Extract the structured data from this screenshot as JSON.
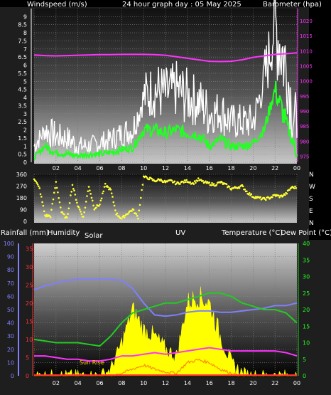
{
  "title": "24 hour graph day : 05 May 2025",
  "colors": {
    "wind_avg": "#22ff22",
    "wind_gust": "#ffffff",
    "barometer": "#ff33ff",
    "direction": "#ffff33",
    "temperature": "#22cc22",
    "dewpoint": "#ff33ff",
    "humidity": "#7f7fff",
    "solar": "#ffff00",
    "rain": "#ff3333",
    "uv": "#ff8800"
  },
  "x_ticks": [
    "02",
    "04",
    "06",
    "08",
    "10",
    "12",
    "14",
    "16",
    "18",
    "20",
    "22",
    "00"
  ],
  "chart_data": [
    {
      "type": "line",
      "title": "24 hour graph day : 05 May 2025",
      "ylabel": "Windspeed (m/s)",
      "y2label": "Barometer (hpa)",
      "ylim": [
        0,
        9.5
      ],
      "y2lim": [
        973,
        1024
      ],
      "yticks": [
        "0",
        "0.5",
        "1",
        "1.5",
        "2",
        "2.5",
        "3",
        "3.5",
        "4",
        "4.5",
        "5",
        "5.5",
        "6",
        "6.5",
        "7",
        "7.5",
        "8",
        "8.5",
        "9"
      ],
      "y2ticks": [
        "975",
        "980",
        "985",
        "990",
        "995",
        "1000",
        "1005",
        "1010",
        "1015",
        "1020"
      ],
      "x": [
        0,
        1,
        2,
        3,
        4,
        5,
        6,
        7,
        8,
        9,
        10,
        11,
        12,
        13,
        14,
        15,
        16,
        17,
        18,
        19,
        20,
        21,
        22,
        23,
        24
      ],
      "series": [
        {
          "name": "gust",
          "axis": "y",
          "values": [
            1.0,
            2.0,
            1.6,
            1.5,
            1.0,
            1.0,
            1.2,
            1.4,
            1.8,
            2.0,
            4.0,
            4.5,
            4.2,
            4.5,
            4.0,
            3.8,
            3.0,
            3.2,
            2.5,
            2.5,
            2.5,
            5.0,
            8.5,
            6.0,
            1.5
          ]
        },
        {
          "name": "avg",
          "axis": "y",
          "values": [
            0.3,
            1.0,
            0.6,
            0.5,
            0.4,
            0.5,
            0.5,
            0.6,
            0.8,
            0.9,
            2.0,
            2.0,
            1.8,
            2.0,
            1.8,
            1.7,
            1.0,
            1.4,
            1.0,
            1.0,
            1.2,
            2.0,
            4.5,
            2.5,
            0.5
          ]
        },
        {
          "name": "barometer",
          "axis": "y2",
          "values": [
            1008.6,
            1008.4,
            1008.3,
            1008.4,
            1008.5,
            1008.6,
            1008.7,
            1008.7,
            1008.8,
            1008.8,
            1008.8,
            1008.7,
            1008.5,
            1008.0,
            1007.5,
            1007.0,
            1006.5,
            1006.4,
            1006.5,
            1007.0,
            1007.8,
            1008.3,
            1008.8,
            1009.0,
            1009.3
          ]
        }
      ]
    },
    {
      "type": "scatter",
      "ylim": [
        0,
        360
      ],
      "yticks": [
        "0",
        "90",
        "180",
        "270",
        "360"
      ],
      "dir_labels": [
        "N",
        "W",
        "S",
        "E",
        "N"
      ],
      "x": [
        0,
        0.5,
        1,
        1.5,
        2,
        2.5,
        3,
        3.5,
        4,
        4.5,
        5,
        5.5,
        6,
        6.5,
        7,
        7.5,
        8,
        8.5,
        9,
        9.5,
        10,
        10.5,
        11,
        11.5,
        12,
        12.5,
        13,
        13.5,
        14,
        14.5,
        15,
        15.5,
        16,
        16.5,
        17,
        17.5,
        18,
        18.5,
        19,
        19.5,
        20,
        20.5,
        21,
        21.5,
        22,
        22.5,
        23,
        23.5,
        24
      ],
      "values": [
        330,
        250,
        45,
        40,
        300,
        70,
        20,
        280,
        120,
        30,
        270,
        100,
        130,
        280,
        240,
        60,
        20,
        60,
        90,
        30,
        340,
        330,
        310,
        320,
        300,
        310,
        290,
        300,
        310,
        290,
        320,
        300,
        290,
        280,
        300,
        280,
        250,
        260,
        270,
        220,
        190,
        180,
        170,
        180,
        200,
        190,
        210,
        260,
        260
      ]
    },
    {
      "type": "area",
      "labels": [
        "Rainfall (mm)",
        "Humidity",
        "Solar",
        "UV",
        "Temperature (°C)",
        "Dew Point (°C)"
      ],
      "rain_ticks": [
        "0",
        "5",
        "10",
        "15",
        "20",
        "25",
        "30",
        "35"
      ],
      "humidity_ticks": [
        "0",
        "10",
        "20",
        "30",
        "40",
        "50",
        "60",
        "70",
        "80",
        "90",
        "100"
      ],
      "temp_ticks": [
        "0",
        "5",
        "10",
        "15",
        "20",
        "25",
        "30",
        "35",
        "40"
      ],
      "humidity_lim": [
        0,
        100
      ],
      "temp_lim": [
        0,
        40
      ],
      "annotation": "Sun Rise",
      "x": [
        0,
        1,
        2,
        3,
        4,
        5,
        6,
        7,
        8,
        9,
        10,
        11,
        12,
        13,
        14,
        15,
        16,
        17,
        18,
        19,
        20,
        21,
        22,
        23,
        24
      ],
      "series": [
        {
          "name": "Humidity",
          "values": [
            65,
            68,
            70,
            72,
            73,
            73,
            73,
            73,
            72,
            66,
            55,
            46,
            45,
            46,
            48,
            49,
            49,
            48,
            48,
            49,
            50,
            51,
            53,
            53,
            55
          ]
        },
        {
          "name": "Temperature",
          "values": [
            11,
            10.5,
            10,
            10,
            10,
            9.5,
            9,
            12,
            16,
            19,
            20,
            21,
            22,
            22,
            23,
            24,
            25,
            25,
            24,
            22,
            21,
            20,
            20,
            19,
            16
          ]
        },
        {
          "name": "Dew Point",
          "values": [
            6,
            6,
            5.5,
            5,
            5,
            4.5,
            4.5,
            5,
            6,
            6,
            6.5,
            7,
            6.5,
            7,
            7.5,
            8,
            8.5,
            8,
            7.5,
            7.5,
            7.5,
            7.5,
            7.5,
            7,
            6
          ]
        },
        {
          "name": "Solar",
          "values": [
            0,
            0,
            0,
            0,
            0,
            0,
            0,
            0.05,
            0.25,
            0.5,
            0.35,
            0.3,
            0.2,
            0.15,
            0.55,
            0.6,
            0.55,
            0.3,
            0.1,
            0.02,
            0,
            0,
            0,
            0,
            0
          ]
        },
        {
          "name": "UV",
          "values": [
            0,
            0,
            0,
            0,
            0,
            0,
            0,
            0,
            0.02,
            0.05,
            0.08,
            0.05,
            0.03,
            0.02,
            0.1,
            0.12,
            0.1,
            0.05,
            0.02,
            0,
            0,
            0,
            0,
            0,
            0
          ]
        },
        {
          "name": "Rainfall",
          "values": [
            0,
            0,
            0,
            0,
            0,
            0,
            0,
            0,
            0,
            0,
            0,
            0,
            0,
            0,
            0,
            0,
            0,
            0,
            0,
            0,
            0,
            0,
            0,
            0,
            0
          ]
        }
      ]
    }
  ]
}
